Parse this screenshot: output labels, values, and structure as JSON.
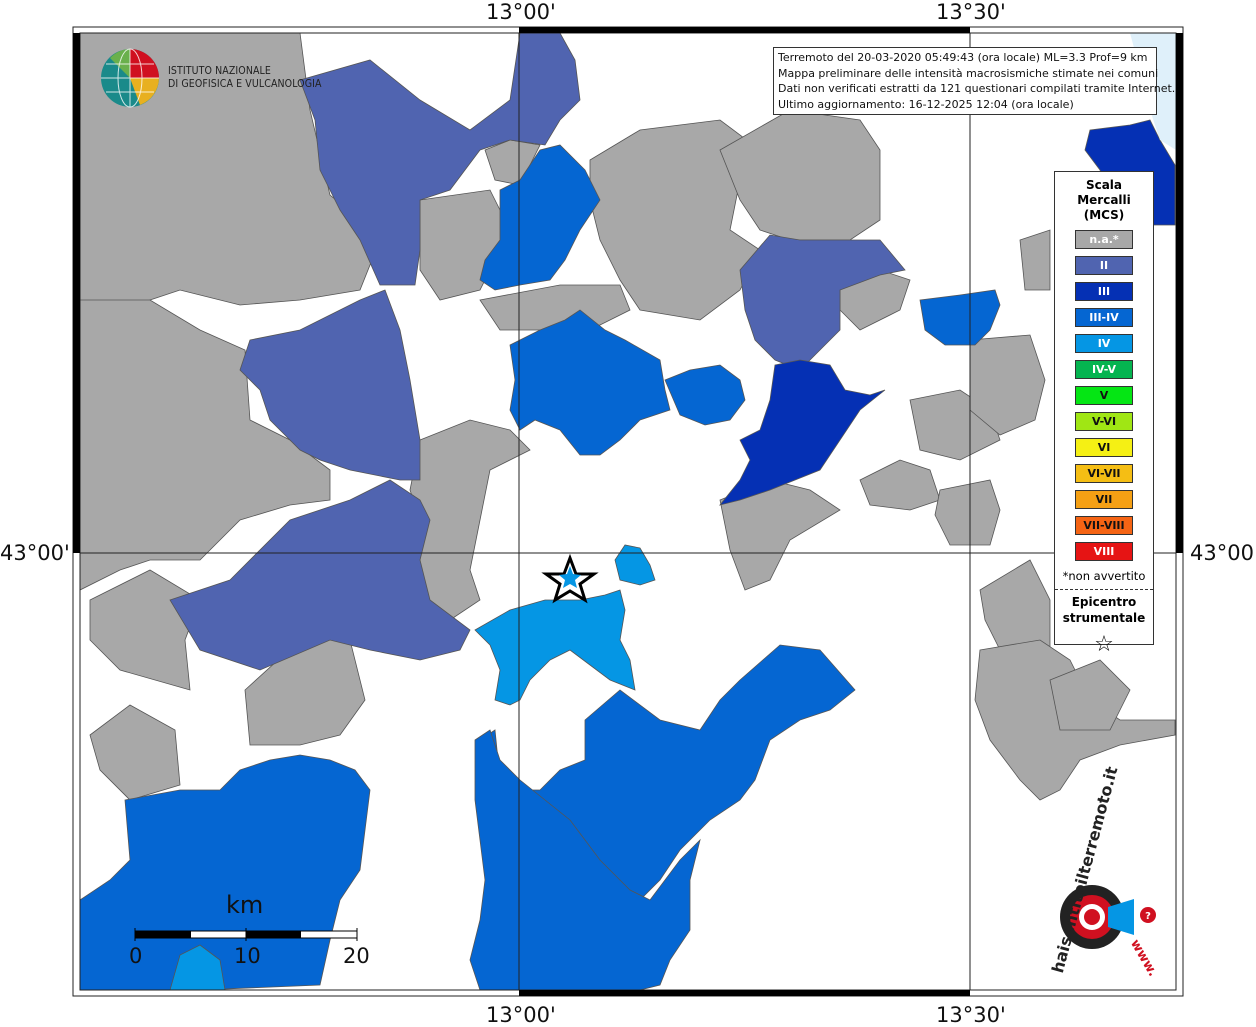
{
  "map": {
    "frame_labels": {
      "top_left": "13°00'",
      "top_right": "13°30'",
      "bottom_left": "13°00'",
      "bottom_right": "13°30'",
      "left": "43°00'",
      "right": "43°00'"
    }
  },
  "logo": {
    "line1": "ISTITUTO NAZIONALE",
    "line2": "DI GEOFISICA E VULCANOLOGIA"
  },
  "info": {
    "line1": "Terremoto del 20-03-2020 05:49:43 (ora locale) ML=3.3 Prof=9 km",
    "line2": "Mappa preliminare delle intensità macrosismiche stimate nei comuni",
    "line3": "Dati non verificati estratti da 121 questionari compilati tramite Internet.",
    "line4": "Ultimo aggiornamento: 16-12-2025 12:04 (ora locale)"
  },
  "legend": {
    "title": "Scala Mercalli (MCS)",
    "items": [
      {
        "label": "n.a.*",
        "color": "#a8a8a8",
        "text_color": "#ffffff"
      },
      {
        "label": "II",
        "color": "#5064b0",
        "text_color": "#ffffff"
      },
      {
        "label": "III",
        "color": "#0530b4",
        "text_color": "#ffffff"
      },
      {
        "label": "III-IV",
        "color": "#0566d2",
        "text_color": "#ffffff"
      },
      {
        "label": "IV",
        "color": "#0596e4",
        "text_color": "#ffffff"
      },
      {
        "label": "IV-V",
        "color": "#05b450",
        "text_color": "#ffffff"
      },
      {
        "label": "V",
        "color": "#05e614",
        "text_color": "#111111"
      },
      {
        "label": "V-VI",
        "color": "#a0e614",
        "text_color": "#111111"
      },
      {
        "label": "VI",
        "color": "#f5f014",
        "text_color": "#111111"
      },
      {
        "label": "VI-VII",
        "color": "#f5be14",
        "text_color": "#111111"
      },
      {
        "label": "VII",
        "color": "#f5a014",
        "text_color": "#111111"
      },
      {
        "label": "VII-VIII",
        "color": "#f56414",
        "text_color": "#111111"
      },
      {
        "label": "VIII",
        "color": "#e61414",
        "text_color": "#ffffff"
      }
    ],
    "note": "*non avvertito",
    "epicenter_line1": "Epicentro",
    "epicenter_line2": "strumentale",
    "epicenter_symbol": "☆"
  },
  "scale_bar": {
    "unit": "km",
    "ticks": [
      "0",
      "10",
      "20"
    ]
  },
  "branding": {
    "logo_text": "haisentitoilterremoto.it",
    "www": "www."
  }
}
